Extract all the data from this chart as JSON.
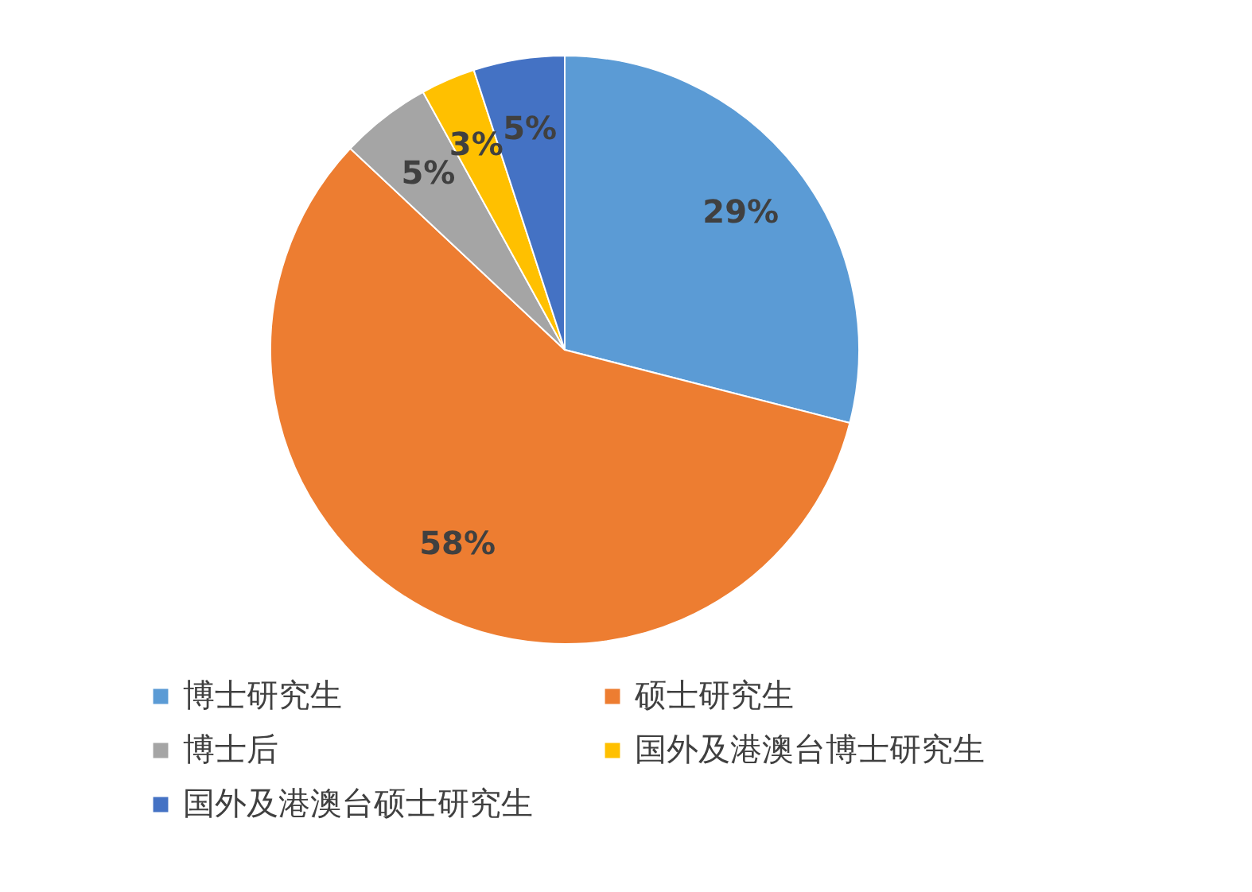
{
  "chart_data": {
    "type": "pie",
    "categories": [
      "博士研究生",
      "硕士研究生",
      "博士后",
      "国外及港澳台博士研究生",
      "国外及港澳台硕士研究生"
    ],
    "values": [
      29,
      58,
      5,
      3,
      5
    ],
    "colors": [
      "#5b9bd5",
      "#ed7d31",
      "#a5a5a5",
      "#ffc000",
      "#4472c4"
    ],
    "value_labels": [
      "29%",
      "58%",
      "5%",
      "3%",
      "5%"
    ],
    "legend": "bottom"
  }
}
